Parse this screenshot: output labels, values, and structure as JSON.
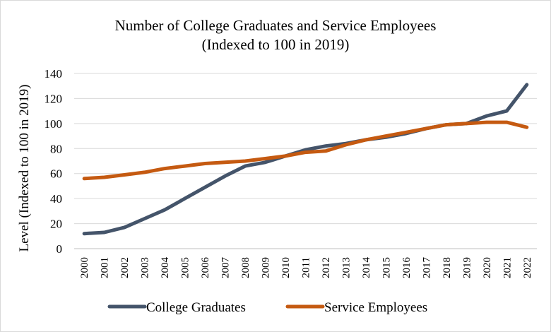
{
  "chart_data": {
    "type": "line",
    "title": "Number of College Graduates and Service Employees",
    "subtitle": "(Indexed to 100 in 2019)",
    "xlabel": "",
    "ylabel": "Level (Indexed to 100 in 2019)",
    "ylim": [
      0,
      140
    ],
    "yticks": [
      "0",
      "20",
      "40",
      "60",
      "80",
      "100",
      "120",
      "140"
    ],
    "grid": true,
    "legend_position": "bottom",
    "categories": [
      "2000",
      "2001",
      "2002",
      "2003",
      "2004",
      "2005",
      "2006",
      "2007",
      "2008",
      "2009",
      "2010",
      "2011",
      "2012",
      "2013",
      "2014",
      "2015",
      "2016",
      "2017",
      "2018",
      "2019",
      "2020",
      "2021",
      "2022"
    ],
    "series": [
      {
        "name": "College Graduates",
        "color": "#44546a",
        "values": [
          12,
          13,
          17,
          24,
          31,
          40,
          49,
          58,
          66,
          69,
          74,
          79,
          82,
          84,
          87,
          89,
          92,
          96,
          99,
          100,
          106,
          110,
          131
        ]
      },
      {
        "name": "Service Employees",
        "color": "#c55a11",
        "values": [
          56,
          57,
          59,
          61,
          64,
          66,
          68,
          69,
          70,
          72,
          74,
          77,
          78,
          83,
          87,
          90,
          93,
          96,
          99,
          100,
          101,
          101,
          97
        ]
      }
    ]
  }
}
